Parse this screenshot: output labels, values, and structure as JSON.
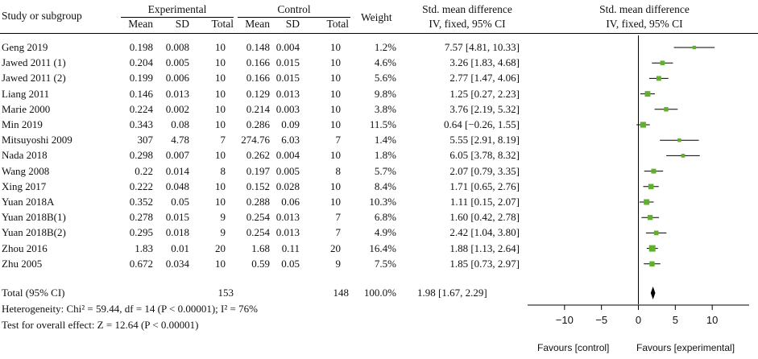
{
  "headers": {
    "study": "Study or subgroup",
    "experimental": "Experimental",
    "control": "Control",
    "mean": "Mean",
    "sd": "SD",
    "total": "Total",
    "weight": "Weight",
    "smd_title": "Std. mean difference",
    "smd_method": "IV, fixed, 95% CI"
  },
  "rows": [
    {
      "study": "Geng 2019",
      "e_mean": "0.198",
      "e_sd": "0.008",
      "e_total": "10",
      "c_mean": "0.148",
      "c_sd": "0.004",
      "c_total": "10",
      "weight": "1.2%",
      "ci": "7.57 [4.81, 10.33]"
    },
    {
      "study": "Jawed 2011 (1)",
      "e_mean": "0.204",
      "e_sd": "0.005",
      "e_total": "10",
      "c_mean": "0.166",
      "c_sd": "0.015",
      "c_total": "10",
      "weight": "4.6%",
      "ci": "3.26 [1.83, 4.68]"
    },
    {
      "study": "Jawed 2011 (2)",
      "e_mean": "0.199",
      "e_sd": "0.006",
      "e_total": "10",
      "c_mean": "0.166",
      "c_sd": "0.015",
      "c_total": "10",
      "weight": "5.6%",
      "ci": "2.77 [1.47, 4.06]"
    },
    {
      "study": "Liang 2011",
      "e_mean": "0.146",
      "e_sd": "0.013",
      "e_total": "10",
      "c_mean": "0.129",
      "c_sd": "0.013",
      "c_total": "10",
      "weight": "9.8%",
      "ci": "1.25 [0.27, 2.23]"
    },
    {
      "study": "Marie 2000",
      "e_mean": "0.224",
      "e_sd": "0.002",
      "e_total": "10",
      "c_mean": "0.214",
      "c_sd": "0.003",
      "c_total": "10",
      "weight": "3.8%",
      "ci": "3.76 [2.19, 5.32]"
    },
    {
      "study": "Min 2019",
      "e_mean": "0.343",
      "e_sd": "0.08",
      "e_total": "10",
      "c_mean": "0.286",
      "c_sd": "0.09",
      "c_total": "10",
      "weight": "11.5%",
      "ci": "0.64 [−0.26, 1.55]"
    },
    {
      "study": "Mitsuyoshi 2009",
      "e_mean": "307",
      "e_sd": "4.78",
      "e_total": "7",
      "c_mean": "274.76",
      "c_sd": "6.03",
      "c_total": "7",
      "weight": "1.4%",
      "ci": "5.55 [2.91, 8.19]"
    },
    {
      "study": "Nada 2018",
      "e_mean": "0.298",
      "e_sd": "0.007",
      "e_total": "10",
      "c_mean": "0.262",
      "c_sd": "0.004",
      "c_total": "10",
      "weight": "1.8%",
      "ci": "6.05 [3.78, 8.32]"
    },
    {
      "study": "Wang 2008",
      "e_mean": "0.22",
      "e_sd": "0.014",
      "e_total": "8",
      "c_mean": "0.197",
      "c_sd": "0.005",
      "c_total": "8",
      "weight": "5.7%",
      "ci": "2.07 [0.79, 3.35]"
    },
    {
      "study": "Xing 2017",
      "e_mean": "0.222",
      "e_sd": "0.048",
      "e_total": "10",
      "c_mean": "0.152",
      "c_sd": "0.028",
      "c_total": "10",
      "weight": "8.4%",
      "ci": "1.71 [0.65, 2.76]"
    },
    {
      "study": "Yuan 2018A",
      "e_mean": "0.352",
      "e_sd": "0.05",
      "e_total": "10",
      "c_mean": "0.288",
      "c_sd": "0.06",
      "c_total": "10",
      "weight": "10.3%",
      "ci": "1.11 [0.15, 2.07]"
    },
    {
      "study": "Yuan 2018B(1)",
      "e_mean": "0.278",
      "e_sd": "0.015",
      "e_total": "9",
      "c_mean": "0.254",
      "c_sd": "0.013",
      "c_total": "7",
      "weight": "6.8%",
      "ci": "1.60 [0.42, 2.78]"
    },
    {
      "study": "Yuan 2018B(2)",
      "e_mean": "0.295",
      "e_sd": "0.018",
      "e_total": "9",
      "c_mean": "0.254",
      "c_sd": "0.013",
      "c_total": "7",
      "weight": "4.9%",
      "ci": "2.42 [1.04, 3.80]"
    },
    {
      "study": "Zhou 2016",
      "e_mean": "1.83",
      "e_sd": "0.01",
      "e_total": "20",
      "c_mean": "1.68",
      "c_sd": "0.11",
      "c_total": "20",
      "weight": "16.4%",
      "ci": "1.88 [1.13, 2.64]"
    },
    {
      "study": "Zhu 2005",
      "e_mean": "0.672",
      "e_sd": "0.034",
      "e_total": "10",
      "c_mean": "0.59",
      "c_sd": "0.05",
      "c_total": "9",
      "weight": "7.5%",
      "ci": "1.85 [0.73, 2.97]"
    }
  ],
  "total": {
    "label": "Total (95% CI)",
    "e_total": "153",
    "c_total": "148",
    "weight": "100.0%",
    "ci": "1.98 [1.67, 2.29]"
  },
  "heterogeneity": "Heterogeneity: Chi² = 59.44, df = 14 (P < 0.00001); I² = 76%",
  "overall_effect": "Test for overall effect: Z = 12.64 (P < 0.00001)",
  "favours_left": "Favours [control]",
  "favours_right": "Favours [experimental]",
  "chart_data": {
    "type": "forest",
    "title": "Std. mean difference",
    "subtitle": "IV, fixed, 95% CI",
    "xlim": [
      -15,
      15
    ],
    "xticks": [
      -10,
      -5,
      0,
      5,
      10
    ],
    "xtick_labels": [
      "−10",
      "−5",
      "0",
      "5",
      "10"
    ],
    "marker_color": "#5fb02a",
    "studies": [
      {
        "name": "Geng 2019",
        "smd": 7.57,
        "lo": 4.81,
        "hi": 10.33,
        "weight": 1.2
      },
      {
        "name": "Jawed 2011 (1)",
        "smd": 3.26,
        "lo": 1.83,
        "hi": 4.68,
        "weight": 4.6
      },
      {
        "name": "Jawed 2011 (2)",
        "smd": 2.77,
        "lo": 1.47,
        "hi": 4.06,
        "weight": 5.6
      },
      {
        "name": "Liang 2011",
        "smd": 1.25,
        "lo": 0.27,
        "hi": 2.23,
        "weight": 9.8
      },
      {
        "name": "Marie 2000",
        "smd": 3.76,
        "lo": 2.19,
        "hi": 5.32,
        "weight": 3.8
      },
      {
        "name": "Min 2019",
        "smd": 0.64,
        "lo": -0.26,
        "hi": 1.55,
        "weight": 11.5
      },
      {
        "name": "Mitsuyoshi 2009",
        "smd": 5.55,
        "lo": 2.91,
        "hi": 8.19,
        "weight": 1.4
      },
      {
        "name": "Nada 2018",
        "smd": 6.05,
        "lo": 3.78,
        "hi": 8.32,
        "weight": 1.8
      },
      {
        "name": "Wang 2008",
        "smd": 2.07,
        "lo": 0.79,
        "hi": 3.35,
        "weight": 5.7
      },
      {
        "name": "Xing 2017",
        "smd": 1.71,
        "lo": 0.65,
        "hi": 2.76,
        "weight": 8.4
      },
      {
        "name": "Yuan 2018A",
        "smd": 1.11,
        "lo": 0.15,
        "hi": 2.07,
        "weight": 10.3
      },
      {
        "name": "Yuan 2018B(1)",
        "smd": 1.6,
        "lo": 0.42,
        "hi": 2.78,
        "weight": 6.8
      },
      {
        "name": "Yuan 2018B(2)",
        "smd": 2.42,
        "lo": 1.04,
        "hi": 3.8,
        "weight": 4.9
      },
      {
        "name": "Zhou 2016",
        "smd": 1.88,
        "lo": 1.13,
        "hi": 2.64,
        "weight": 16.4
      },
      {
        "name": "Zhu 2005",
        "smd": 1.85,
        "lo": 0.73,
        "hi": 2.97,
        "weight": 7.5
      }
    ],
    "overall": {
      "smd": 1.98,
      "lo": 1.67,
      "hi": 2.29
    }
  }
}
